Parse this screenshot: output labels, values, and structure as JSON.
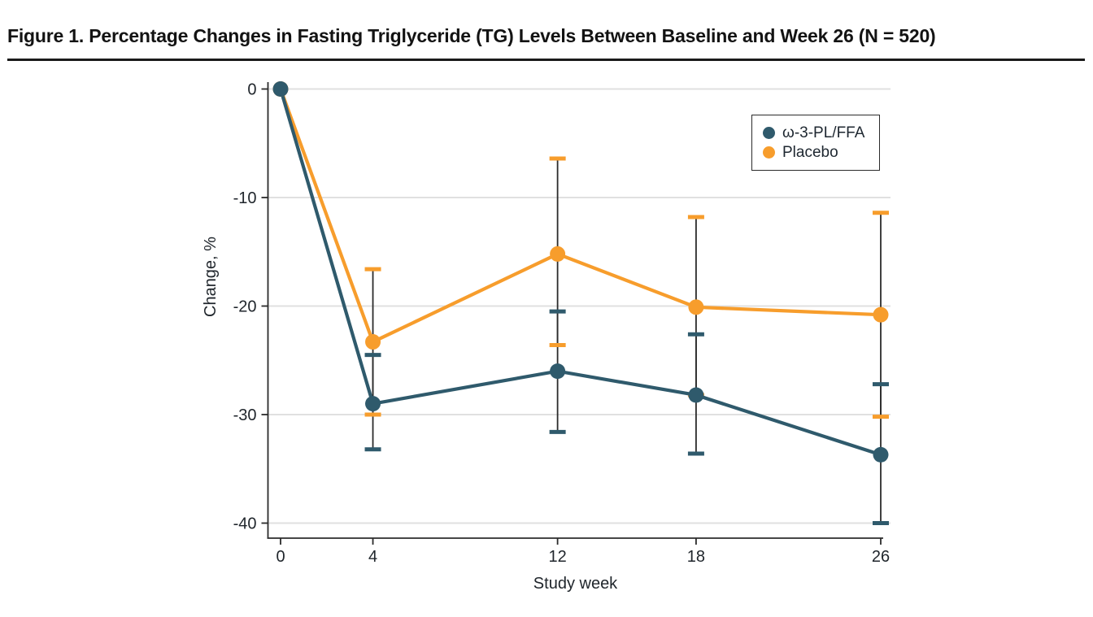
{
  "figure": {
    "title": "Figure 1. Percentage Changes in Fasting Triglyceride (TG) Levels Between Baseline and Week 26 (N = 520)"
  },
  "colors": {
    "accent_bar": "#E4107E",
    "omega3": "#2F5A6C",
    "placebo": "#F79D2C",
    "grid": "#E0E0E0",
    "axis": "#2B2B2B",
    "error_line": "#2B2B2B",
    "tick_text": "#20262C"
  },
  "chart_data": {
    "type": "line",
    "title": "",
    "xlabel": "Study week",
    "ylabel": "Change, %",
    "x": [
      0,
      4,
      12,
      18,
      26
    ],
    "xticks": [
      0,
      4,
      12,
      18,
      26
    ],
    "yticks": [
      0,
      -10,
      -20,
      -30,
      -40
    ],
    "xlim": [
      0,
      26
    ],
    "ylim": [
      -40,
      0
    ],
    "grid": true,
    "legend_position": "top-right",
    "series": [
      {
        "name": "ω-3-PL/FFA",
        "color": "#2F5A6C",
        "values": [
          0,
          -29.0,
          -26.0,
          -28.2,
          -33.7
        ],
        "error_high": [
          null,
          -24.5,
          -20.5,
          -22.6,
          -27.2
        ],
        "error_low": [
          null,
          -33.2,
          -31.6,
          -33.6,
          -40.0
        ]
      },
      {
        "name": "Placebo",
        "color": "#F79D2C",
        "values": [
          0,
          -23.3,
          -15.2,
          -20.1,
          -20.8
        ],
        "error_high": [
          null,
          -16.6,
          -6.4,
          -11.8,
          -11.4
        ],
        "error_low": [
          null,
          -30.0,
          -23.6,
          -28.2,
          -30.2
        ]
      }
    ]
  }
}
